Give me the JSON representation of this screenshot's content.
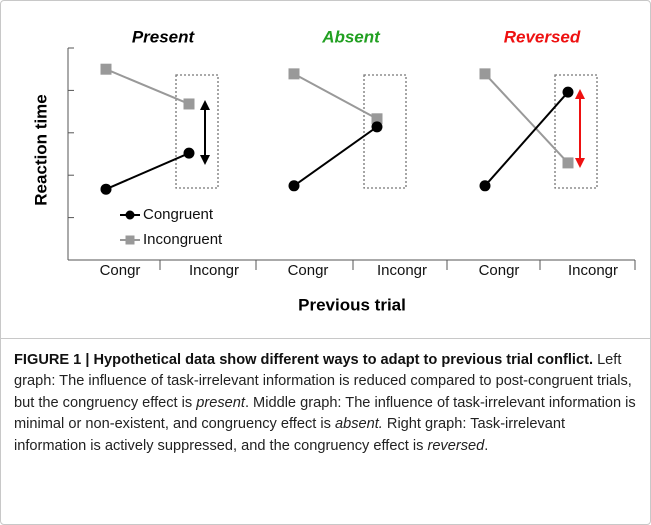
{
  "chart_data": [
    {
      "type": "line",
      "title": "Present",
      "title_color": "#000000",
      "ylabel": "Reaction time",
      "xlabel": "Previous trial",
      "categories": [
        "Congr",
        "Incongr"
      ],
      "ylim": [
        0,
        5
      ],
      "yticks": [
        1,
        2,
        3,
        4,
        5
      ],
      "series": [
        {
          "name": "Congruent",
          "color": "#000000",
          "marker": "circle",
          "values": [
            1.67,
            2.52
          ]
        },
        {
          "name": "Incongruent",
          "color": "#999999",
          "marker": "square",
          "values": [
            4.5,
            3.68
          ]
        }
      ]
    },
    {
      "type": "line",
      "title": "Absent",
      "title_color": "#22a022",
      "categories": [
        "Congr",
        "Incongr"
      ],
      "ylim": [
        0,
        5
      ],
      "series": [
        {
          "color": "#000000",
          "marker": "circle",
          "values": [
            1.75,
            3.14
          ]
        },
        {
          "color": "#999999",
          "marker": "square",
          "values": [
            4.39,
            3.33
          ]
        }
      ]
    },
    {
      "type": "line",
      "title": "Reversed",
      "title_color": "#ee1111",
      "categories": [
        "Congr",
        "Incongr"
      ],
      "ylim": [
        0,
        5
      ],
      "series": [
        {
          "color": "#000000",
          "marker": "circle",
          "values": [
            1.75,
            3.96
          ]
        },
        {
          "color": "#999999",
          "marker": "square",
          "values": [
            4.39,
            2.29
          ]
        }
      ]
    }
  ],
  "caption": {
    "label": "FIGURE 1 | Hypothetical data show different ways to adapt to previous trial conflict.",
    "parts": [
      " Left graph: The influence of task-irrelevant information is reduced compared to post-congruent trials, but the congruency effect is ",
      "present",
      ". Middle graph: The influence of task-irrelevant information is minimal or non-existent, and congruency effect is ",
      "absent.",
      " Right graph: Task-irrelevant information is actively suppressed, and the congruency effect is ",
      "reversed",
      "."
    ]
  }
}
